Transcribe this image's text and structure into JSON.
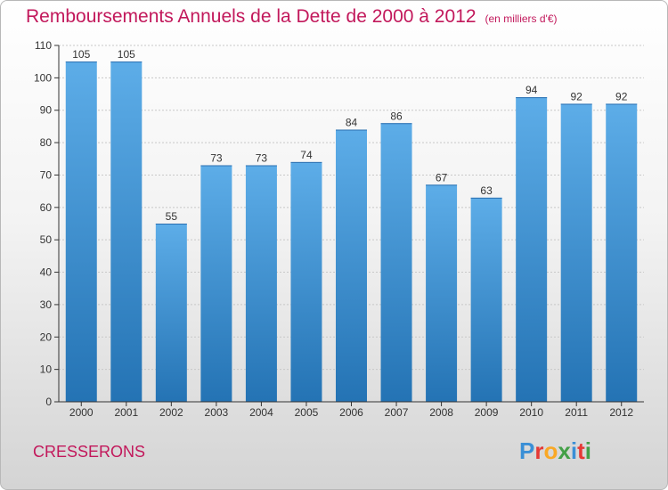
{
  "header": {
    "title": "Remboursements Annuels de la Dette de 2000 à 2012",
    "unit": "(en milliers d'€)"
  },
  "footer": {
    "commune": "CRESSERONS",
    "logo_letters": [
      {
        "char": "P",
        "color": "#3a8fd6"
      },
      {
        "char": "r",
        "color": "#e53935"
      },
      {
        "char": "o",
        "color": "#f9a825"
      },
      {
        "char": "x",
        "color": "#43a047"
      },
      {
        "char": "i",
        "color": "#3a8fd6"
      },
      {
        "char": "t",
        "color": "#e53935"
      },
      {
        "char": "i",
        "color": "#43a047"
      }
    ]
  },
  "colors": {
    "title": "#c2185b",
    "bar_top": "#5dade8",
    "bar_bottom": "#2473b4",
    "grid": "#c8c8c8",
    "axis": "#333333"
  },
  "chart_data": {
    "type": "bar",
    "title": "Remboursements Annuels de la Dette de 2000 à 2012",
    "subtitle": "(en milliers d'€)",
    "xlabel": "",
    "ylabel": "",
    "categories": [
      "2000",
      "2001",
      "2002",
      "2003",
      "2004",
      "2005",
      "2006",
      "2007",
      "2008",
      "2009",
      "2010",
      "2011",
      "2012"
    ],
    "values": [
      105,
      105,
      55,
      73,
      73,
      74,
      84,
      86,
      67,
      63,
      94,
      92,
      92
    ],
    "ylim": [
      0,
      110
    ],
    "yticks": [
      0,
      10,
      20,
      30,
      40,
      50,
      60,
      70,
      80,
      90,
      100,
      110
    ],
    "grid": true,
    "legend": "none"
  }
}
